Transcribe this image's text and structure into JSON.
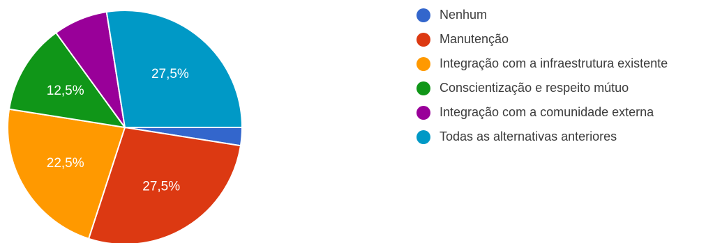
{
  "chart_data": {
    "type": "pie",
    "slices": [
      {
        "label": "Nenhum",
        "value": 2.5,
        "value_label": "",
        "color": "#3366cc"
      },
      {
        "label": "Manutenção",
        "value": 27.5,
        "value_label": "27,5%",
        "color": "#dc3912"
      },
      {
        "label": "Integração com a infraestrutura existente",
        "value": 22.5,
        "value_label": "22,5%",
        "color": "#ff9900"
      },
      {
        "label": "Conscientização e respeito mútuo",
        "value": 12.5,
        "value_label": "12,5%",
        "color": "#109618"
      },
      {
        "label": "Integração com a comunidade externa",
        "value": 7.5,
        "value_label": "",
        "color": "#990099"
      },
      {
        "label": "Todas as alternativas anteriores",
        "value": 27.5,
        "value_label": "27,5%",
        "color": "#0099c6"
      }
    ],
    "start": "3 o'clock",
    "direction": "clockwise",
    "legend_position": "right"
  }
}
